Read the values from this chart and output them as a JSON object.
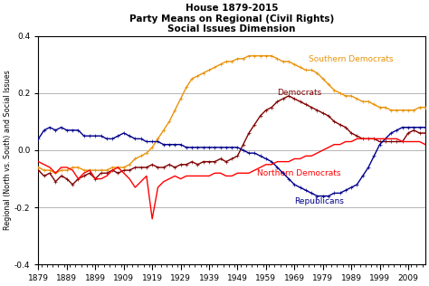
{
  "title_line1": "House 1879-2015",
  "title_line2": "Party Means on Regional (Civil Rights)",
  "title_line3": "Social Issues Dimension",
  "ylabel": "Regional (North vs. South) and Social Issues",
  "xlim": [
    1879,
    2015
  ],
  "ylim": [
    -0.4,
    0.4
  ],
  "yticks": [
    -0.4,
    -0.2,
    0.0,
    0.2,
    0.4
  ],
  "xticks": [
    1879,
    1889,
    1899,
    1909,
    1919,
    1929,
    1939,
    1949,
    1959,
    1969,
    1979,
    1989,
    1999,
    2009
  ],
  "colors": {
    "southern_dem": "#E8920A",
    "democrats": "#800000",
    "northern_dem": "#FF0000",
    "republicans": "#00008B"
  },
  "southern_dem_years": [
    1879,
    1881,
    1883,
    1885,
    1887,
    1889,
    1891,
    1893,
    1895,
    1897,
    1899,
    1901,
    1903,
    1905,
    1907,
    1909,
    1911,
    1913,
    1915,
    1917,
    1919,
    1921,
    1923,
    1925,
    1927,
    1929,
    1931,
    1933,
    1935,
    1937,
    1939,
    1941,
    1943,
    1945,
    1947,
    1949,
    1951,
    1953,
    1955,
    1957,
    1959,
    1961,
    1963,
    1965,
    1967,
    1969,
    1971,
    1973,
    1975,
    1977,
    1979,
    1981,
    1983,
    1985,
    1987,
    1989,
    1991,
    1993,
    1995,
    1997,
    1999,
    2001,
    2003,
    2005,
    2007,
    2009,
    2011,
    2013,
    2015
  ],
  "southern_dem_vals": [
    -0.06,
    -0.07,
    -0.07,
    -0.08,
    -0.07,
    -0.07,
    -0.06,
    -0.06,
    -0.07,
    -0.07,
    -0.07,
    -0.07,
    -0.07,
    -0.06,
    -0.06,
    -0.06,
    -0.05,
    -0.03,
    -0.02,
    -0.01,
    0.01,
    0.04,
    0.07,
    0.1,
    0.14,
    0.18,
    0.22,
    0.25,
    0.26,
    0.27,
    0.28,
    0.29,
    0.3,
    0.31,
    0.31,
    0.32,
    0.32,
    0.33,
    0.33,
    0.33,
    0.33,
    0.33,
    0.32,
    0.31,
    0.31,
    0.3,
    0.29,
    0.28,
    0.28,
    0.27,
    0.25,
    0.23,
    0.21,
    0.2,
    0.19,
    0.19,
    0.18,
    0.17,
    0.17,
    0.16,
    0.15,
    0.15,
    0.14,
    0.14,
    0.14,
    0.14,
    0.14,
    0.15,
    0.15
  ],
  "democrats_years": [
    1879,
    1881,
    1883,
    1885,
    1887,
    1889,
    1891,
    1893,
    1895,
    1897,
    1899,
    1901,
    1903,
    1905,
    1907,
    1909,
    1911,
    1913,
    1915,
    1917,
    1919,
    1921,
    1923,
    1925,
    1927,
    1929,
    1931,
    1933,
    1935,
    1937,
    1939,
    1941,
    1943,
    1945,
    1947,
    1949,
    1951,
    1953,
    1955,
    1957,
    1959,
    1961,
    1963,
    1965,
    1967,
    1969,
    1971,
    1973,
    1975,
    1977,
    1979,
    1981,
    1983,
    1985,
    1987,
    1989,
    1991,
    1993,
    1995,
    1997,
    1999,
    2001,
    2003,
    2005,
    2007,
    2009,
    2011,
    2013,
    2015
  ],
  "democrats_vals": [
    -0.07,
    -0.09,
    -0.08,
    -0.11,
    -0.09,
    -0.1,
    -0.12,
    -0.1,
    -0.09,
    -0.08,
    -0.1,
    -0.08,
    -0.08,
    -0.07,
    -0.08,
    -0.07,
    -0.07,
    -0.06,
    -0.06,
    -0.06,
    -0.05,
    -0.06,
    -0.06,
    -0.05,
    -0.06,
    -0.05,
    -0.05,
    -0.04,
    -0.05,
    -0.04,
    -0.04,
    -0.04,
    -0.03,
    -0.04,
    -0.03,
    -0.02,
    0.02,
    0.06,
    0.09,
    0.12,
    0.14,
    0.15,
    0.17,
    0.18,
    0.19,
    0.18,
    0.17,
    0.16,
    0.15,
    0.14,
    0.13,
    0.12,
    0.1,
    0.09,
    0.08,
    0.06,
    0.05,
    0.04,
    0.04,
    0.04,
    0.03,
    0.03,
    0.03,
    0.03,
    0.03,
    0.06,
    0.07,
    0.06,
    0.06
  ],
  "northern_dem_years": [
    1879,
    1881,
    1883,
    1885,
    1887,
    1889,
    1891,
    1893,
    1895,
    1897,
    1899,
    1901,
    1903,
    1905,
    1907,
    1909,
    1911,
    1913,
    1915,
    1917,
    1919,
    1921,
    1923,
    1925,
    1927,
    1929,
    1931,
    1933,
    1935,
    1937,
    1939,
    1941,
    1943,
    1945,
    1947,
    1949,
    1951,
    1953,
    1955,
    1957,
    1959,
    1961,
    1963,
    1965,
    1967,
    1969,
    1971,
    1973,
    1975,
    1977,
    1979,
    1981,
    1983,
    1985,
    1987,
    1989,
    1991,
    1993,
    1995,
    1997,
    1999,
    2001,
    2003,
    2005,
    2007,
    2009,
    2011,
    2013,
    2015
  ],
  "northern_dem_vals": [
    -0.04,
    -0.05,
    -0.06,
    -0.08,
    -0.06,
    -0.06,
    -0.07,
    -0.1,
    -0.08,
    -0.07,
    -0.1,
    -0.1,
    -0.09,
    -0.07,
    -0.06,
    -0.08,
    -0.1,
    -0.13,
    -0.11,
    -0.09,
    -0.24,
    -0.13,
    -0.11,
    -0.1,
    -0.09,
    -0.1,
    -0.09,
    -0.09,
    -0.09,
    -0.09,
    -0.09,
    -0.08,
    -0.08,
    -0.09,
    -0.09,
    -0.08,
    -0.08,
    -0.08,
    -0.07,
    -0.06,
    -0.05,
    -0.05,
    -0.04,
    -0.04,
    -0.04,
    -0.03,
    -0.03,
    -0.02,
    -0.02,
    -0.01,
    0.0,
    0.01,
    0.02,
    0.02,
    0.03,
    0.03,
    0.04,
    0.04,
    0.04,
    0.04,
    0.04,
    0.04,
    0.04,
    0.04,
    0.03,
    0.03,
    0.03,
    0.03,
    0.02
  ],
  "republicans_years": [
    1879,
    1881,
    1883,
    1885,
    1887,
    1889,
    1891,
    1893,
    1895,
    1897,
    1899,
    1901,
    1903,
    1905,
    1907,
    1909,
    1911,
    1913,
    1915,
    1917,
    1919,
    1921,
    1923,
    1925,
    1927,
    1929,
    1931,
    1933,
    1935,
    1937,
    1939,
    1941,
    1943,
    1945,
    1947,
    1949,
    1951,
    1953,
    1955,
    1957,
    1959,
    1961,
    1963,
    1965,
    1967,
    1969,
    1971,
    1973,
    1975,
    1977,
    1979,
    1981,
    1983,
    1985,
    1987,
    1989,
    1991,
    1993,
    1995,
    1997,
    1999,
    2001,
    2003,
    2005,
    2007,
    2009,
    2011,
    2013,
    2015
  ],
  "republicans_vals": [
    0.04,
    0.07,
    0.08,
    0.07,
    0.08,
    0.07,
    0.07,
    0.07,
    0.05,
    0.05,
    0.05,
    0.05,
    0.04,
    0.04,
    0.05,
    0.06,
    0.05,
    0.04,
    0.04,
    0.03,
    0.03,
    0.03,
    0.02,
    0.02,
    0.02,
    0.02,
    0.01,
    0.01,
    0.01,
    0.01,
    0.01,
    0.01,
    0.01,
    0.01,
    0.01,
    0.01,
    0.0,
    -0.01,
    -0.01,
    -0.02,
    -0.03,
    -0.04,
    -0.06,
    -0.08,
    -0.1,
    -0.12,
    -0.13,
    -0.14,
    -0.15,
    -0.16,
    -0.16,
    -0.16,
    -0.15,
    -0.15,
    -0.14,
    -0.13,
    -0.12,
    -0.09,
    -0.06,
    -0.02,
    0.02,
    0.04,
    0.06,
    0.07,
    0.08,
    0.08,
    0.08,
    0.08,
    0.08
  ],
  "ann_sd": [
    1974,
    0.305
  ],
  "ann_dem": [
    1963,
    0.185
  ],
  "ann_nd": [
    1956,
    -0.065
  ],
  "ann_rep": [
    1969,
    -0.165
  ]
}
